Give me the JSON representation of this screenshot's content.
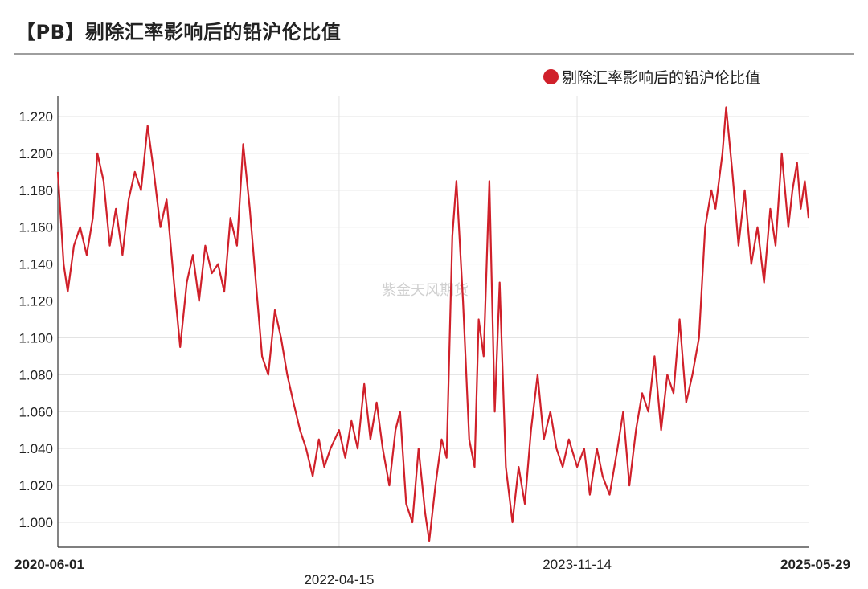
{
  "title": "【PB】剔除汇率影响后的铅沪伦比值",
  "watermark": "紫金天风期货",
  "colors": {
    "series": "#d0202a",
    "grid": "#e3e3e3",
    "axis": "#333333"
  },
  "chart_data": {
    "type": "line",
    "title": "【PB】剔除汇率影响后的铅沪伦比值",
    "legend_position": "top-right",
    "grid": true,
    "ylim": [
      0.988,
      1.232
    ],
    "y_ticks": [
      "1.220",
      "1.200",
      "1.180",
      "1.160",
      "1.140",
      "1.120",
      "1.100",
      "1.080",
      "1.060",
      "1.040",
      "1.020",
      "1.000"
    ],
    "x_range": [
      "2020-06-01",
      "2025-05-29"
    ],
    "x_ticks": [
      {
        "label": "2020-06-01",
        "date": "2020-06-01",
        "bold": true,
        "row": 1,
        "gridline": false
      },
      {
        "label": "2022-04-15",
        "date": "2022-04-15",
        "bold": false,
        "row": 2,
        "gridline": true
      },
      {
        "label": "2023-11-14",
        "date": "2023-11-14",
        "bold": false,
        "row": 1,
        "gridline": true
      },
      {
        "label": "2025-05-29",
        "date": "2025-05-29",
        "bold": true,
        "row": 1,
        "gridline": false
      }
    ],
    "series": [
      {
        "name": "剔除汇率影响后的铅沪伦比值",
        "color": "#d0202a",
        "points": [
          [
            "2020-06-01",
            1.19
          ],
          [
            "2020-06-15",
            1.14
          ],
          [
            "2020-06-25",
            1.125
          ],
          [
            "2020-07-10",
            1.15
          ],
          [
            "2020-07-25",
            1.16
          ],
          [
            "2020-08-10",
            1.145
          ],
          [
            "2020-08-25",
            1.165
          ],
          [
            "2020-09-05",
            1.2
          ],
          [
            "2020-09-20",
            1.185
          ],
          [
            "2020-10-05",
            1.15
          ],
          [
            "2020-10-20",
            1.17
          ],
          [
            "2020-11-05",
            1.145
          ],
          [
            "2020-11-20",
            1.175
          ],
          [
            "2020-12-05",
            1.19
          ],
          [
            "2020-12-20",
            1.18
          ],
          [
            "2021-01-05",
            1.215
          ],
          [
            "2021-01-20",
            1.19
          ],
          [
            "2021-02-05",
            1.16
          ],
          [
            "2021-02-20",
            1.175
          ],
          [
            "2021-03-10",
            1.13
          ],
          [
            "2021-03-25",
            1.095
          ],
          [
            "2021-04-10",
            1.13
          ],
          [
            "2021-04-25",
            1.145
          ],
          [
            "2021-05-10",
            1.12
          ],
          [
            "2021-05-25",
            1.15
          ],
          [
            "2021-06-10",
            1.135
          ],
          [
            "2021-06-25",
            1.14
          ],
          [
            "2021-07-10",
            1.125
          ],
          [
            "2021-07-25",
            1.165
          ],
          [
            "2021-08-10",
            1.15
          ],
          [
            "2021-08-25",
            1.205
          ],
          [
            "2021-09-10",
            1.17
          ],
          [
            "2021-09-25",
            1.13
          ],
          [
            "2021-10-10",
            1.09
          ],
          [
            "2021-10-25",
            1.08
          ],
          [
            "2021-11-10",
            1.115
          ],
          [
            "2021-11-25",
            1.1
          ],
          [
            "2021-12-10",
            1.08
          ],
          [
            "2021-12-25",
            1.065
          ],
          [
            "2022-01-10",
            1.05
          ],
          [
            "2022-01-25",
            1.04
          ],
          [
            "2022-02-10",
            1.025
          ],
          [
            "2022-02-25",
            1.045
          ],
          [
            "2022-03-10",
            1.03
          ],
          [
            "2022-03-25",
            1.04
          ],
          [
            "2022-04-15",
            1.05
          ],
          [
            "2022-04-30",
            1.035
          ],
          [
            "2022-05-15",
            1.055
          ],
          [
            "2022-05-30",
            1.04
          ],
          [
            "2022-06-15",
            1.075
          ],
          [
            "2022-06-30",
            1.045
          ],
          [
            "2022-07-15",
            1.065
          ],
          [
            "2022-07-30",
            1.04
          ],
          [
            "2022-08-15",
            1.02
          ],
          [
            "2022-08-30",
            1.05
          ],
          [
            "2022-09-10",
            1.06
          ],
          [
            "2022-09-25",
            1.01
          ],
          [
            "2022-10-10",
            1.0
          ],
          [
            "2022-10-25",
            1.04
          ],
          [
            "2022-11-10",
            1.005
          ],
          [
            "2022-11-20",
            0.99
          ],
          [
            "2022-12-05",
            1.02
          ],
          [
            "2022-12-20",
            1.045
          ],
          [
            "2023-01-01",
            1.035
          ],
          [
            "2023-01-15",
            1.155
          ],
          [
            "2023-01-25",
            1.185
          ],
          [
            "2023-02-10",
            1.12
          ],
          [
            "2023-02-25",
            1.045
          ],
          [
            "2023-03-10",
            1.03
          ],
          [
            "2023-03-20",
            1.11
          ],
          [
            "2023-04-01",
            1.09
          ],
          [
            "2023-04-15",
            1.185
          ],
          [
            "2023-04-28",
            1.06
          ],
          [
            "2023-05-10",
            1.13
          ],
          [
            "2023-05-25",
            1.03
          ],
          [
            "2023-06-10",
            1.0
          ],
          [
            "2023-06-25",
            1.03
          ],
          [
            "2023-07-10",
            1.01
          ],
          [
            "2023-07-25",
            1.05
          ],
          [
            "2023-08-10",
            1.08
          ],
          [
            "2023-08-25",
            1.045
          ],
          [
            "2023-09-10",
            1.06
          ],
          [
            "2023-09-25",
            1.04
          ],
          [
            "2023-10-10",
            1.03
          ],
          [
            "2023-10-25",
            1.045
          ],
          [
            "2023-11-14",
            1.03
          ],
          [
            "2023-12-01",
            1.04
          ],
          [
            "2023-12-15",
            1.015
          ],
          [
            "2024-01-01",
            1.04
          ],
          [
            "2024-01-15",
            1.025
          ],
          [
            "2024-02-01",
            1.015
          ],
          [
            "2024-02-20",
            1.04
          ],
          [
            "2024-03-05",
            1.06
          ],
          [
            "2024-03-20",
            1.02
          ],
          [
            "2024-04-05",
            1.05
          ],
          [
            "2024-04-20",
            1.07
          ],
          [
            "2024-05-05",
            1.06
          ],
          [
            "2024-05-20",
            1.09
          ],
          [
            "2024-06-05",
            1.05
          ],
          [
            "2024-06-20",
            1.08
          ],
          [
            "2024-07-05",
            1.07
          ],
          [
            "2024-07-20",
            1.11
          ],
          [
            "2024-08-05",
            1.065
          ],
          [
            "2024-08-20",
            1.08
          ],
          [
            "2024-09-05",
            1.1
          ],
          [
            "2024-09-20",
            1.16
          ],
          [
            "2024-10-05",
            1.18
          ],
          [
            "2024-10-15",
            1.17
          ],
          [
            "2024-11-01",
            1.2
          ],
          [
            "2024-11-10",
            1.225
          ],
          [
            "2024-11-25",
            1.19
          ],
          [
            "2024-12-10",
            1.15
          ],
          [
            "2024-12-25",
            1.18
          ],
          [
            "2025-01-10",
            1.14
          ],
          [
            "2025-01-25",
            1.16
          ],
          [
            "2025-02-10",
            1.13
          ],
          [
            "2025-02-25",
            1.17
          ],
          [
            "2025-03-10",
            1.15
          ],
          [
            "2025-03-25",
            1.2
          ],
          [
            "2025-04-10",
            1.16
          ],
          [
            "2025-04-20",
            1.18
          ],
          [
            "2025-05-01",
            1.195
          ],
          [
            "2025-05-10",
            1.17
          ],
          [
            "2025-05-20",
            1.185
          ],
          [
            "2025-05-29",
            1.165
          ]
        ]
      }
    ]
  }
}
